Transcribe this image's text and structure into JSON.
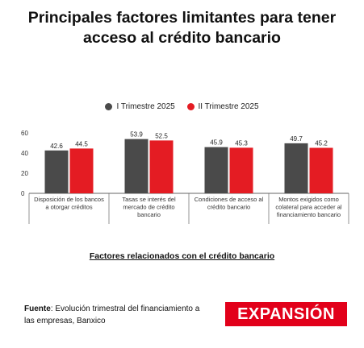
{
  "title_line1": "Principales factores limitantes para tener",
  "title_line2": "acceso al crédito bancario",
  "x_axis_title": "Factores relacionados con el crédito bancario",
  "source_label": "Fuente",
  "source_text": ": Evolución trimestral del financiamiento a las empresas, Banxico",
  "logo_text": "EXPANSIÓN",
  "colors": {
    "series1": "#4a4a4a",
    "series2": "#e41c23",
    "brand": "#e2001a"
  },
  "chart_data": {
    "type": "bar",
    "categories": [
      [
        "Disposición de los bancos",
        "a otorgar créditos"
      ],
      [
        "Tasas se interés del",
        "mercado de crédito",
        "bancario"
      ],
      [
        "Condiciones de acceso al",
        "crédito bancario"
      ],
      [
        "Montos exigidos como",
        "colateral para acceder al",
        "financiamiento bancario"
      ]
    ],
    "series": [
      {
        "name": "I Trimestre 2025",
        "values": [
          42.6,
          53.9,
          45.9,
          49.7
        ]
      },
      {
        "name": "II Trimestre 2025",
        "values": [
          44.5,
          52.5,
          45.3,
          45.2
        ]
      }
    ],
    "yticks": [
      0,
      20,
      40,
      60
    ],
    "ylim": [
      0,
      60
    ],
    "legend_position": "top-center",
    "grid": false
  }
}
